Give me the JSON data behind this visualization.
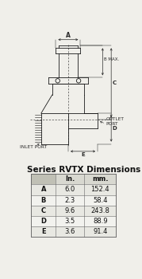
{
  "title": "Series RVTX Dimensions",
  "table_headers": [
    "",
    "In.",
    "mm."
  ],
  "table_rows": [
    [
      "A",
      "6.0",
      "152.4"
    ],
    [
      "B",
      "2.3",
      "58.4"
    ],
    [
      "C",
      "9.6",
      "243.8"
    ],
    [
      "D",
      "3.5",
      "88.9"
    ],
    [
      "E",
      "3.6",
      "91.4"
    ]
  ],
  "bg_color": "#f0efea",
  "line_color": "#1a1a1a",
  "dim_color": "#2a2a2a",
  "table_header_bg": "#d8d8d0",
  "table_row_bg1": "#e8e8e2",
  "table_row_bg2": "#f2f2ee"
}
